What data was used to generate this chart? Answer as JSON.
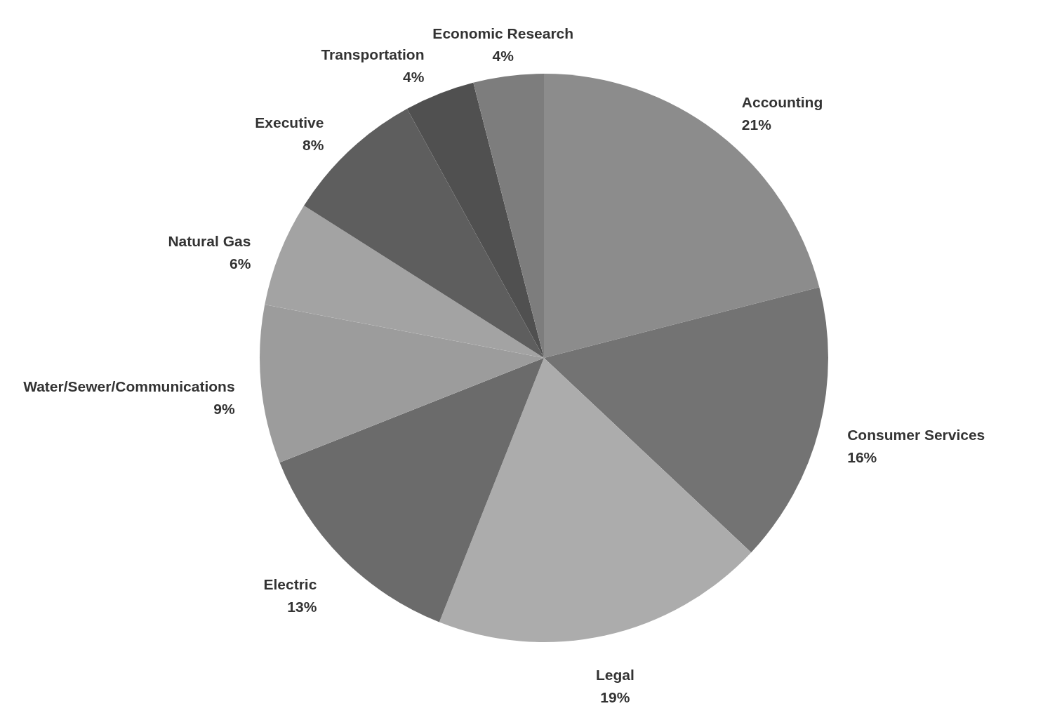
{
  "chart_data": {
    "type": "pie",
    "categories": [
      "Accounting",
      "Consumer Services",
      "Legal",
      "Electric",
      "Water/Sewer/Communications",
      "Natural Gas",
      "Executive",
      "Transportation",
      "Economic Research"
    ],
    "values": [
      21,
      16,
      19,
      13,
      9,
      6,
      8,
      4,
      4
    ],
    "value_labels": [
      "21%",
      "16%",
      "19%",
      "13%",
      "9%",
      "6%",
      "8%",
      "4%",
      "4%"
    ],
    "colors": [
      "#8c8c8c",
      "#737373",
      "#acacac",
      "#6b6b6b",
      "#9c9c9c",
      "#a3a3a3",
      "#5e5e5e",
      "#505050",
      "#7d7d7d"
    ]
  }
}
